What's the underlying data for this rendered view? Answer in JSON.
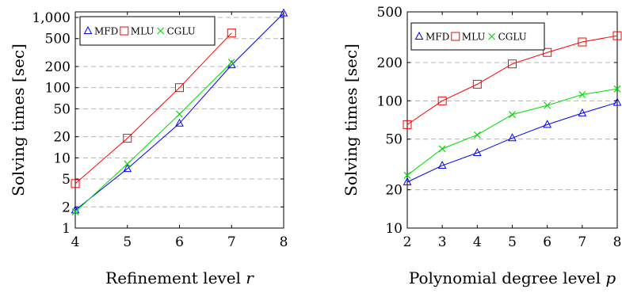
{
  "chart_data": [
    {
      "type": "line",
      "yscale": "log",
      "x": [
        4,
        5,
        6,
        7,
        8
      ],
      "xlabel": "Refinement level",
      "xlabel_var": "r",
      "ylabel": "Solving times [sec]",
      "xlim": [
        4,
        8
      ],
      "ylim": [
        1,
        1200
      ],
      "xticks": [
        "4",
        "5",
        "6",
        "7",
        "8"
      ],
      "yticks": [
        "1",
        "2",
        "5",
        "10",
        "20",
        "50",
        "100",
        "200",
        "500",
        "1,000"
      ],
      "ytick_values": [
        1,
        2,
        5,
        10,
        20,
        50,
        100,
        200,
        500,
        1000
      ],
      "grid": "major y, dashed",
      "legend_position": "top-left",
      "series": [
        {
          "name": "MFD",
          "color": "#0000ff",
          "marker": "triangle",
          "x": [
            4,
            5,
            6,
            7,
            8
          ],
          "values": [
            1.8,
            7,
            31,
            210,
            1150
          ]
        },
        {
          "name": "MLU",
          "color": "#ff0000",
          "marker": "square",
          "x": [
            4,
            5,
            6,
            7
          ],
          "values": [
            4.3,
            19,
            100,
            600
          ]
        },
        {
          "name": "CGLU",
          "color": "#00dd00",
          "marker": "cross",
          "x": [
            4,
            5,
            6,
            7
          ],
          "values": [
            1.7,
            8.2,
            42,
            230
          ]
        }
      ]
    },
    {
      "type": "line",
      "yscale": "log",
      "x": [
        2,
        3,
        4,
        5,
        6,
        7,
        8
      ],
      "xlabel": "Polynomial degree level",
      "xlabel_var": "p",
      "ylabel": "Solving times [sec]",
      "xlim": [
        2,
        8
      ],
      "ylim": [
        10,
        500
      ],
      "xticks": [
        "2",
        "3",
        "4",
        "5",
        "6",
        "7",
        "8"
      ],
      "yticks": [
        "10",
        "20",
        "50",
        "100",
        "200",
        "500"
      ],
      "ytick_values": [
        10,
        20,
        50,
        100,
        200,
        500
      ],
      "grid": "major y, dashed",
      "legend_position": "top-left",
      "series": [
        {
          "name": "MFD",
          "color": "#0000ff",
          "marker": "triangle",
          "x": [
            2,
            3,
            4,
            5,
            6,
            7,
            8
          ],
          "values": [
            23,
            31,
            39,
            51,
            65,
            80,
            97
          ]
        },
        {
          "name": "MLU",
          "color": "#ff0000",
          "marker": "square",
          "x": [
            2,
            3,
            4,
            5,
            6,
            7,
            8
          ],
          "values": [
            65,
            100,
            135,
            195,
            240,
            290,
            325
          ]
        },
        {
          "name": "CGLU",
          "color": "#00dd00",
          "marker": "cross",
          "x": [
            2,
            3,
            4,
            5,
            6,
            7,
            8
          ],
          "values": [
            26,
            42,
            54,
            78,
            92,
            112,
            124
          ]
        }
      ]
    }
  ]
}
